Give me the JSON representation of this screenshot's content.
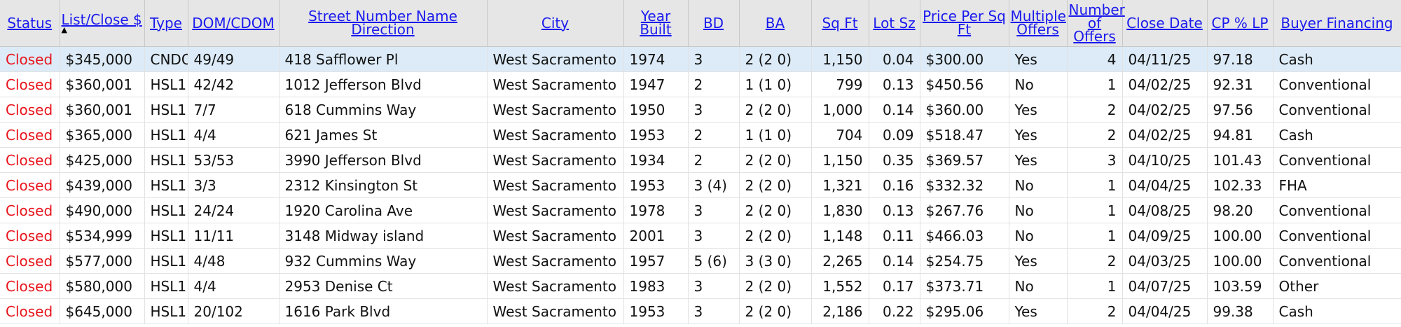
{
  "table": {
    "headers": [
      "Status",
      "List/Close $",
      "Type",
      "DOM/CDOM",
      "Street Number Name Direction",
      "City",
      "Year Built",
      "BD",
      "BA",
      "Sq Ft",
      "Lot Sz",
      "Price Per Sq Ft",
      "Multiple Offers",
      "Number of Offers",
      "Close Date",
      "CP % LP",
      "Buyer Financing"
    ],
    "sorted_column": "List/Close $",
    "sort_direction_glyph": "▲",
    "rows": [
      [
        "Closed",
        "$345,000",
        "CNDO",
        "49/49",
        "418 Safflower Pl",
        "West Sacramento",
        "1974",
        "3",
        "2 (2 0)",
        "1,150",
        "0.04",
        "$300.00",
        "Yes",
        "4",
        "04/11/25",
        "97.18",
        "Cash"
      ],
      [
        "Closed",
        "$360,001",
        "HSL1",
        "42/42",
        "1012 Jefferson Blvd",
        "West Sacramento",
        "1947",
        "2",
        "1 (1 0)",
        "799",
        "0.13",
        "$450.56",
        "No",
        "1",
        "04/02/25",
        "92.31",
        "Conventional"
      ],
      [
        "Closed",
        "$360,001",
        "HSL1",
        "7/7",
        "618 Cummins Way",
        "West Sacramento",
        "1950",
        "3",
        "2 (2 0)",
        "1,000",
        "0.14",
        "$360.00",
        "Yes",
        "2",
        "04/02/25",
        "97.56",
        "Conventional"
      ],
      [
        "Closed",
        "$365,000",
        "HSL1",
        "4/4",
        "621 James St",
        "West Sacramento",
        "1953",
        "2",
        "1 (1 0)",
        "704",
        "0.09",
        "$518.47",
        "Yes",
        "2",
        "04/02/25",
        "94.81",
        "Cash"
      ],
      [
        "Closed",
        "$425,000",
        "HSL1",
        "53/53",
        "3990 Jefferson Blvd",
        "West Sacramento",
        "1934",
        "2",
        "2 (2 0)",
        "1,150",
        "0.35",
        "$369.57",
        "Yes",
        "3",
        "04/10/25",
        "101.43",
        "Conventional"
      ],
      [
        "Closed",
        "$439,000",
        "HSL1",
        "3/3",
        "2312 Kinsington St",
        "West Sacramento",
        "1953",
        "3 (4)",
        "2 (2 0)",
        "1,321",
        "0.16",
        "$332.32",
        "No",
        "1",
        "04/04/25",
        "102.33",
        "FHA"
      ],
      [
        "Closed",
        "$490,000",
        "HSL1",
        "24/24",
        "1920 Carolina Ave",
        "West Sacramento",
        "1978",
        "3",
        "2 (2 0)",
        "1,830",
        "0.13",
        "$267.76",
        "No",
        "1",
        "04/08/25",
        "98.20",
        "Conventional"
      ],
      [
        "Closed",
        "$534,999",
        "HSL1",
        "11/11",
        "3148 Midway island",
        "West Sacramento",
        "2001",
        "3",
        "2 (2 0)",
        "1,148",
        "0.11",
        "$466.03",
        "No",
        "1",
        "04/09/25",
        "100.00",
        "Conventional"
      ],
      [
        "Closed",
        "$577,000",
        "HSL1",
        "4/48",
        "932 Cummins Way",
        "West Sacramento",
        "1957",
        "5 (6)",
        "3 (3 0)",
        "2,265",
        "0.14",
        "$254.75",
        "Yes",
        "2",
        "04/03/25",
        "100.00",
        "Conventional"
      ],
      [
        "Closed",
        "$580,000",
        "HSL1",
        "4/4",
        "2953 Denise Ct",
        "West Sacramento",
        "1983",
        "3",
        "2 (2 0)",
        "1,552",
        "0.17",
        "$373.71",
        "No",
        "1",
        "04/07/25",
        "103.59",
        "Other"
      ],
      [
        "Closed",
        "$645,000",
        "HSL1",
        "20/102",
        "1616 Park Blvd",
        "West Sacramento",
        "1953",
        "3",
        "2 (2 0)",
        "2,186",
        "0.22",
        "$295.06",
        "Yes",
        "2",
        "04/04/25",
        "99.38",
        "Cash"
      ]
    ],
    "selected_row_index": 0
  },
  "colors": {
    "status_closed": "#e8141c",
    "header_link": "#1a1aee",
    "header_bg": "#e6e6e6",
    "selected_row_bg": "#dcebf7"
  }
}
